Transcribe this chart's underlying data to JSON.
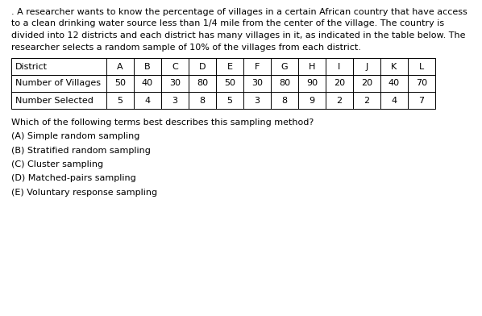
{
  "para_lines": [
    ". A researcher wants to know the percentage of villages in a certain African country that have access",
    "to a clean drinking water source less than 1/4 mile from the center of the village. The country is",
    "divided into 12 districts and each district has many villages in it, as indicated in the table below. The",
    "researcher selects a random sample of 10% of the villages from each district."
  ],
  "table_headers": [
    "District",
    "A",
    "B",
    "C",
    "D",
    "E",
    "F",
    "G",
    "H",
    "I",
    "J",
    "K",
    "L"
  ],
  "table_row1_label": "Number of Villages",
  "table_row1_values": [
    50,
    40,
    30,
    80,
    50,
    30,
    80,
    90,
    20,
    20,
    40,
    70
  ],
  "table_row2_label": "Number Selected",
  "table_row2_values": [
    5,
    4,
    3,
    8,
    5,
    3,
    8,
    9,
    2,
    2,
    4,
    7
  ],
  "question": "Which of the following terms best describes this sampling method?",
  "choices": [
    "(A) Simple random sampling",
    "(B) Stratified random sampling",
    "(C) Cluster sampling",
    "(D) Matched-pairs sampling",
    "(E) Voluntary response sampling"
  ],
  "bg_color": "#ffffff",
  "text_color": "#000000",
  "font_size": 8.0
}
